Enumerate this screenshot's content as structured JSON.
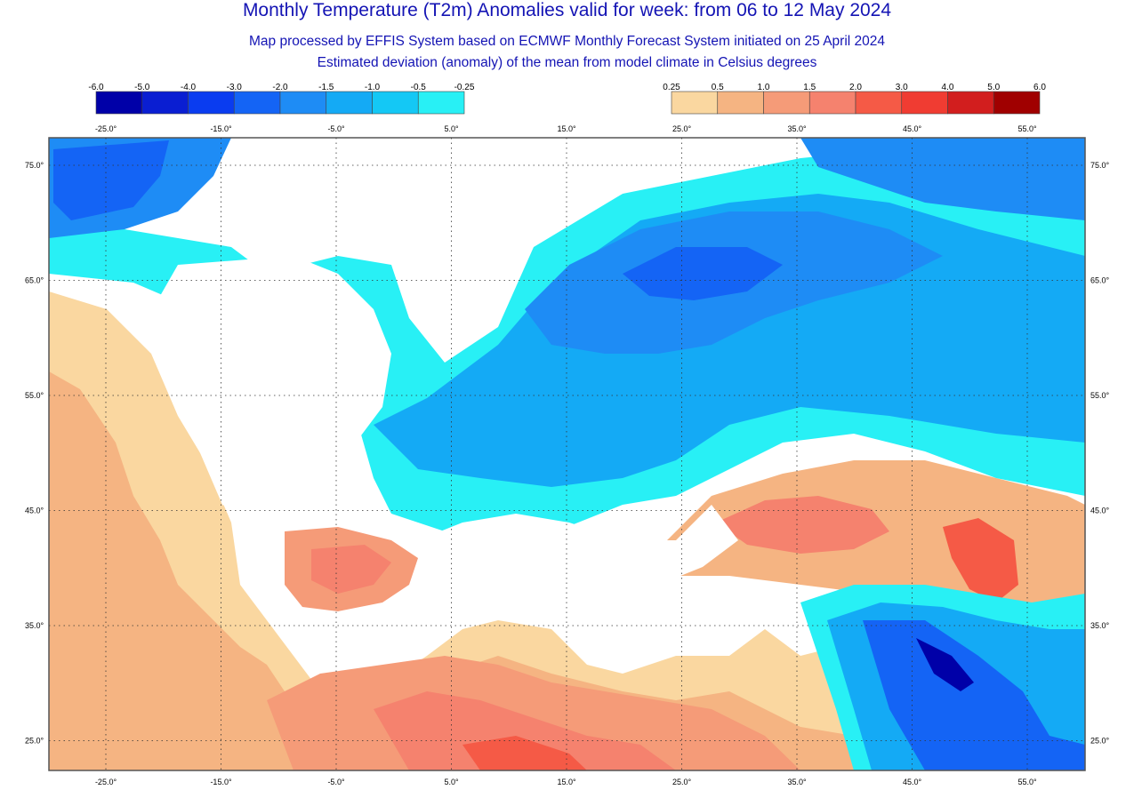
{
  "title": "Monthly Temperature (T2m) Anomalies valid for week: from 06 to 12 May 2024",
  "subtitle1": "Map processed by EFFIS System based on ECMWF Monthly Forecast System initiated on 25 April 2024",
  "subtitle2": "Estimated deviation (anomaly) of the mean from model climate in Celsius degrees",
  "legend_cold": {
    "labels": [
      "-6.0",
      "-5.0",
      "-4.0",
      "-3.0",
      "-2.0",
      "-1.5",
      "-1.0",
      "-0.5",
      "-0.25"
    ],
    "colors": [
      "#0000a8",
      "#0a1ed2",
      "#0a3cf0",
      "#1464f5",
      "#1e8cf5",
      "#14aaf5",
      "#14c8f5",
      "#28f0f5"
    ]
  },
  "legend_warm": {
    "labels": [
      "0.25",
      "0.5",
      "1.0",
      "1.5",
      "2.0",
      "3.0",
      "4.0",
      "5.0",
      "6.0"
    ],
    "colors": [
      "#fad7a0",
      "#f5b482",
      "#f59b78",
      "#f5826e",
      "#f55a46",
      "#f03c32",
      "#d21e1e",
      "#a00000"
    ]
  },
  "lon_labels": [
    "-25.0°",
    "-15.0°",
    "-5.0°",
    "5.0°",
    "15.0°",
    "25.0°",
    "35.0°",
    "45.0°",
    "55.0°"
  ],
  "lat_labels": [
    "75.0°",
    "65.0°",
    "55.0°",
    "45.0°",
    "35.0°",
    "25.0°"
  ],
  "colors": {
    "title": "#1414b4",
    "no_anomaly": "#ffffff",
    "frame": "#555555"
  }
}
